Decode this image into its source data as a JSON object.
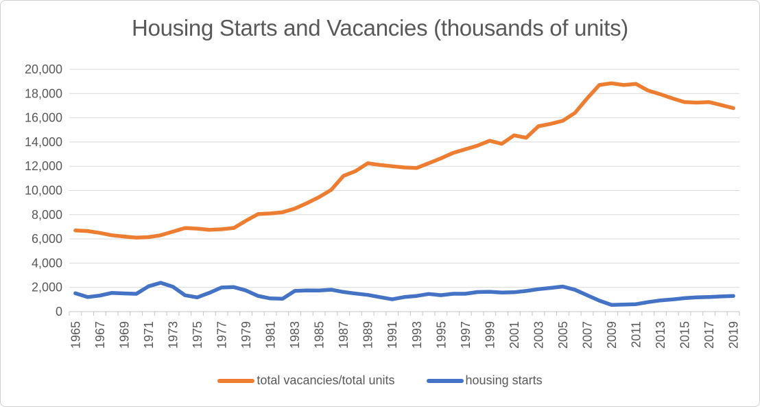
{
  "chart_data": {
    "type": "line",
    "title": "Housing Starts and Vacancies (thousands of units)",
    "xlabel": "",
    "ylabel": "",
    "ylim": [
      0,
      20000
    ],
    "grid": "horizontal",
    "legend_position": "bottom",
    "x": [
      1965,
      1966,
      1967,
      1968,
      1969,
      1970,
      1971,
      1972,
      1973,
      1974,
      1975,
      1976,
      1977,
      1978,
      1979,
      1980,
      1981,
      1982,
      1983,
      1984,
      1985,
      1986,
      1987,
      1988,
      1989,
      1990,
      1991,
      1992,
      1993,
      1994,
      1995,
      1996,
      1997,
      1998,
      1999,
      2000,
      2001,
      2002,
      2003,
      2004,
      2005,
      2006,
      2007,
      2008,
      2009,
      2010,
      2011,
      2012,
      2013,
      2014,
      2015,
      2016,
      2017,
      2018,
      2019
    ],
    "x_tick_labels": [
      "1965",
      "1967",
      "1969",
      "1971",
      "1973",
      "1975",
      "1977",
      "1979",
      "1981",
      "1983",
      "1985",
      "1987",
      "1989",
      "1991",
      "1993",
      "1995",
      "1997",
      "1999",
      "2001",
      "2003",
      "2005",
      "2007",
      "2009",
      "2011",
      "2013",
      "2015",
      "2017",
      "2019"
    ],
    "y_ticks": [
      0,
      2000,
      4000,
      6000,
      8000,
      10000,
      12000,
      14000,
      16000,
      18000,
      20000
    ],
    "y_tick_labels": [
      "0",
      "2,000",
      "4,000",
      "6,000",
      "8,000",
      "10,000",
      "12,000",
      "14,000",
      "16,000",
      "18,000",
      "20,000"
    ],
    "series": [
      {
        "name": "total vacancies/total units",
        "color": "#ED7D31",
        "values": [
          6700,
          6650,
          6500,
          6300,
          6200,
          6100,
          6150,
          6300,
          6600,
          6900,
          6850,
          6750,
          6800,
          6900,
          7500,
          8050,
          8100,
          8200,
          8500,
          8950,
          9450,
          10050,
          11200,
          11600,
          12250,
          12100,
          12000,
          11900,
          11850,
          12250,
          12650,
          13100,
          13400,
          13700,
          14100,
          13850,
          14550,
          14350,
          15300,
          15500,
          15750,
          16400,
          17600,
          18700,
          18850,
          18700,
          18800,
          18250,
          17950,
          17600,
          17300,
          17250,
          17300,
          17050,
          16800
        ]
      },
      {
        "name": "housing starts",
        "color": "#4472C4",
        "values": [
          1510,
          1200,
          1320,
          1545,
          1500,
          1470,
          2085,
          2380,
          2055,
          1350,
          1170,
          1550,
          1990,
          2020,
          1745,
          1290,
          1085,
          1060,
          1705,
          1750,
          1740,
          1805,
          1620,
          1490,
          1375,
          1195,
          1015,
          1200,
          1290,
          1455,
          1355,
          1475,
          1475,
          1615,
          1640,
          1570,
          1600,
          1705,
          1850,
          1955,
          2070,
          1800,
          1355,
          905,
          555,
          585,
          610,
          780,
          925,
          1005,
          1110,
          1175,
          1205,
          1250,
          1290
        ]
      }
    ]
  },
  "colors": {
    "title_text": "#595959",
    "axis_label": "#595959",
    "gridline": "#D9D9D9",
    "axis_line": "#C6C6C6",
    "background": "#FFFFFF",
    "frame_border": "#CFCFCF"
  }
}
